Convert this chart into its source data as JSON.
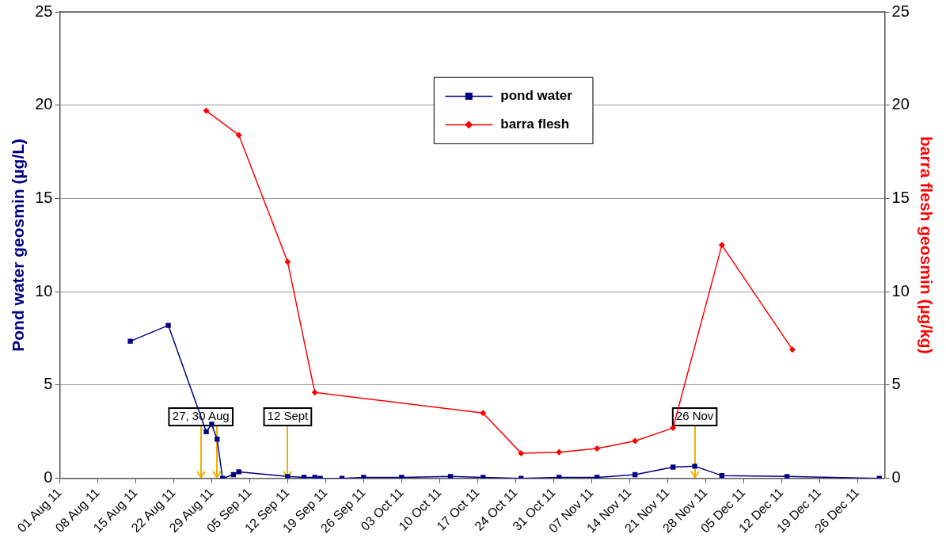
{
  "chart_data": {
    "type": "line",
    "ylabel": "Pond water geosmin (µg/L)",
    "y2label": "barra flesh geosmin (µg/kg)",
    "xlim": [
      "--08-01",
      "--12-31"
    ],
    "xticks": [
      {
        "value": "--08-01",
        "label": "01 Aug 11"
      },
      {
        "value": "--08-08",
        "label": "08 Aug 11"
      },
      {
        "value": "--08-15",
        "label": "15 Aug 11"
      },
      {
        "value": "--08-22",
        "label": "22 Aug 11"
      },
      {
        "value": "--08-29",
        "label": "29 Aug 11"
      },
      {
        "value": "--09-05",
        "label": "05 Sep 11"
      },
      {
        "value": "--09-12",
        "label": "12 Sep 11"
      },
      {
        "value": "--09-19",
        "label": "19 Sep 11"
      },
      {
        "value": "--09-26",
        "label": "26 Sep 11"
      },
      {
        "value": "--10-03",
        "label": "03 Oct 11"
      },
      {
        "value": "--10-10",
        "label": "10 Oct 11"
      },
      {
        "value": "--10-17",
        "label": "17 Oct 11"
      },
      {
        "value": "--10-24",
        "label": "24 Oct 11"
      },
      {
        "value": "--10-31",
        "label": "31 Oct 11"
      },
      {
        "value": "--11-07",
        "label": "07 Nov 11"
      },
      {
        "value": "--11-14",
        "label": "14 Nov 11"
      },
      {
        "value": "--11-21",
        "label": "21 Nov 11"
      },
      {
        "value": "--11-28",
        "label": "28 Nov 11"
      },
      {
        "value": "--12-05",
        "label": "05 Dec 11"
      },
      {
        "value": "--12-12",
        "label": "12 Dec 11"
      },
      {
        "value": "--12-19",
        "label": "19 Dec 11"
      },
      {
        "value": "--12-26",
        "label": "26 Dec 11"
      }
    ],
    "ylim": [
      0,
      25
    ],
    "yticks": [
      0,
      5,
      10,
      15,
      20,
      25
    ],
    "y2lim": [
      0,
      25
    ],
    "y2ticks": [
      0,
      5,
      10,
      15,
      20,
      25
    ],
    "grid": "y",
    "legend": "top",
    "line_style": "solid",
    "series": [
      {
        "name": "pond water",
        "color": "#000080",
        "marker": "square",
        "x": [
          "--08-14",
          "--08-21",
          "--08-28",
          "--08-29",
          "--08-30",
          "--08-31",
          "--09-02",
          "--09-03",
          "--09-12",
          "--09-15",
          "--09-17",
          "--09-18",
          "--09-22",
          "--09-26",
          "--10-03",
          "--10-12",
          "--10-18",
          "--10-25",
          "--11-01",
          "--11-08",
          "--11-15",
          "--11-22",
          "--11-26",
          "--12-01",
          "--12-13",
          "--12-30"
        ],
        "values": [
          7.35,
          8.2,
          2.5,
          2.9,
          2.1,
          0.0,
          0.2,
          0.35,
          0.1,
          0.05,
          0.05,
          0.0,
          0.0,
          0.05,
          0.05,
          0.1,
          0.05,
          0.0,
          0.05,
          0.05,
          0.2,
          0.6,
          0.65,
          0.15,
          0.1,
          0.0
        ]
      },
      {
        "name": "barra flesh",
        "color": "#ff0000",
        "marker": "diamond",
        "axis": "y2",
        "x": [
          "--08-28",
          "--09-03",
          "--09-12",
          "--09-17",
          "--10-18",
          "--10-25",
          "--11-01",
          "--11-08",
          "--11-15",
          "--11-22",
          "--12-01",
          "--12-14"
        ],
        "values": [
          19.7,
          18.4,
          11.6,
          4.6,
          3.5,
          1.35,
          1.4,
          1.6,
          2.0,
          2.7,
          12.5,
          6.9
        ]
      }
    ],
    "ref_lines": [
      {
        "axis": "x",
        "value": "--08-27",
        "label": "27, 30 Aug",
        "color": "#f0b000"
      },
      {
        "axis": "x",
        "value": "--08-30",
        "color": "#f0b000"
      },
      {
        "axis": "x",
        "value": "--09-12",
        "label": "12 Sept",
        "color": "#f0b000"
      },
      {
        "axis": "x",
        "value": "--11-26",
        "label": "26 Nov",
        "color": "#f0b000"
      }
    ]
  }
}
